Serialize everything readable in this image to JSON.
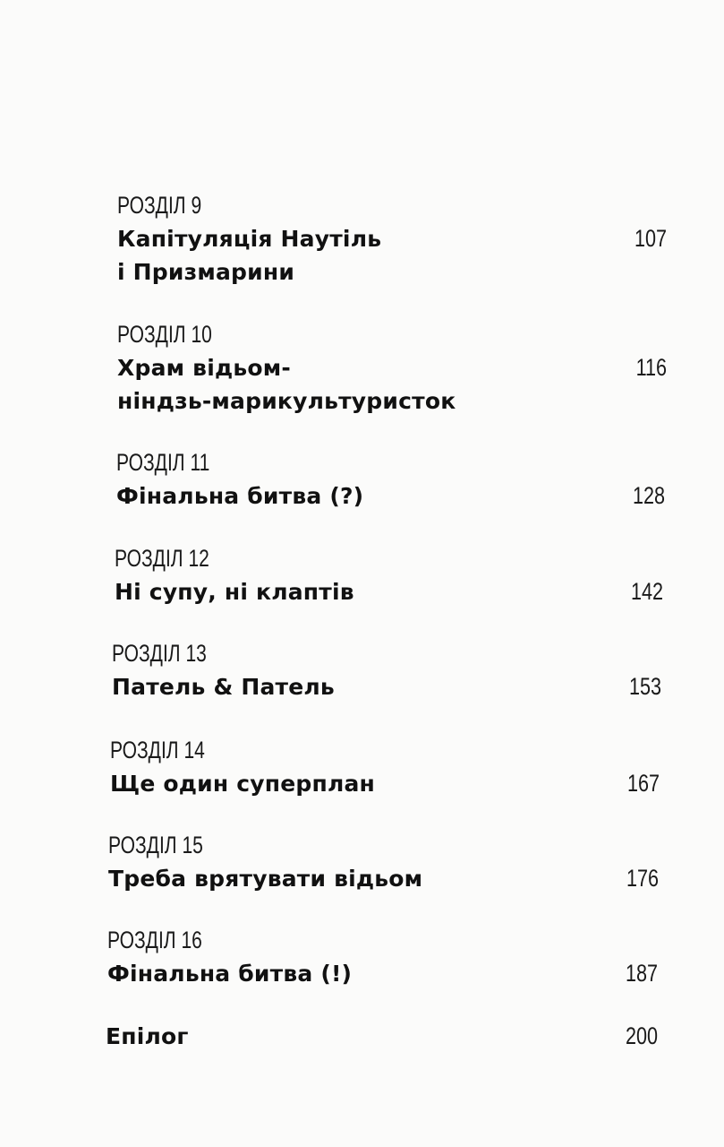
{
  "toc": [
    {
      "label": "РОЗДІЛ 9",
      "title_lines": [
        "Капітуляція Наутіль",
        "і Призмарини"
      ],
      "page": "107"
    },
    {
      "label": "РОЗДІЛ 10",
      "title_lines": [
        "Храм відьом-",
        "ніндзь-марикультуристок"
      ],
      "page": "116"
    },
    {
      "label": "РОЗДІЛ 11",
      "title_lines": [
        "Фінальна битва (?)"
      ],
      "page": "128"
    },
    {
      "label": "РОЗДІЛ 12",
      "title_lines": [
        "Ні супу, ні клаптів"
      ],
      "page": "142"
    },
    {
      "label": "РОЗДІЛ 13",
      "title_lines": [
        "Патель & Патель"
      ],
      "page": "153"
    },
    {
      "label": "РОЗДІЛ 14",
      "title_lines": [
        "Ще один суперплан"
      ],
      "page": "167"
    },
    {
      "label": "РОЗДІЛ 15",
      "title_lines": [
        "Треба врятувати відьом"
      ],
      "page": "176"
    },
    {
      "label": "РОЗДІЛ 16",
      "title_lines": [
        "Фінальна битва (!)"
      ],
      "page": "187"
    }
  ],
  "epilogue": {
    "title": "Епілог",
    "page": "200"
  }
}
